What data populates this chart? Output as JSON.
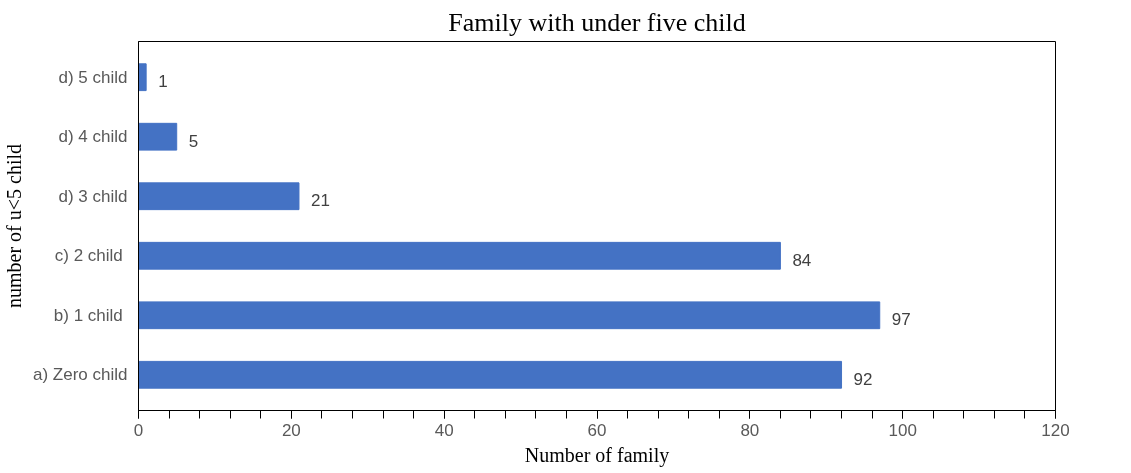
{
  "chart_data": {
    "type": "bar",
    "orientation": "horizontal",
    "title": "Family with under five child",
    "xlabel": "Number of family",
    "ylabel": "number of u<5 child",
    "categories": [
      "d) 5 child",
      "d) 4 child",
      "d) 3 child",
      "c) 2  child",
      "b) 1  child",
      "a) Zero child"
    ],
    "values": [
      1,
      5,
      21,
      84,
      97,
      92
    ],
    "color": "#4472c4",
    "data_labels": true,
    "xlim": [
      0,
      120
    ],
    "xticks": [
      0,
      20,
      40,
      60,
      80,
      100,
      120
    ],
    "grid": false
  }
}
